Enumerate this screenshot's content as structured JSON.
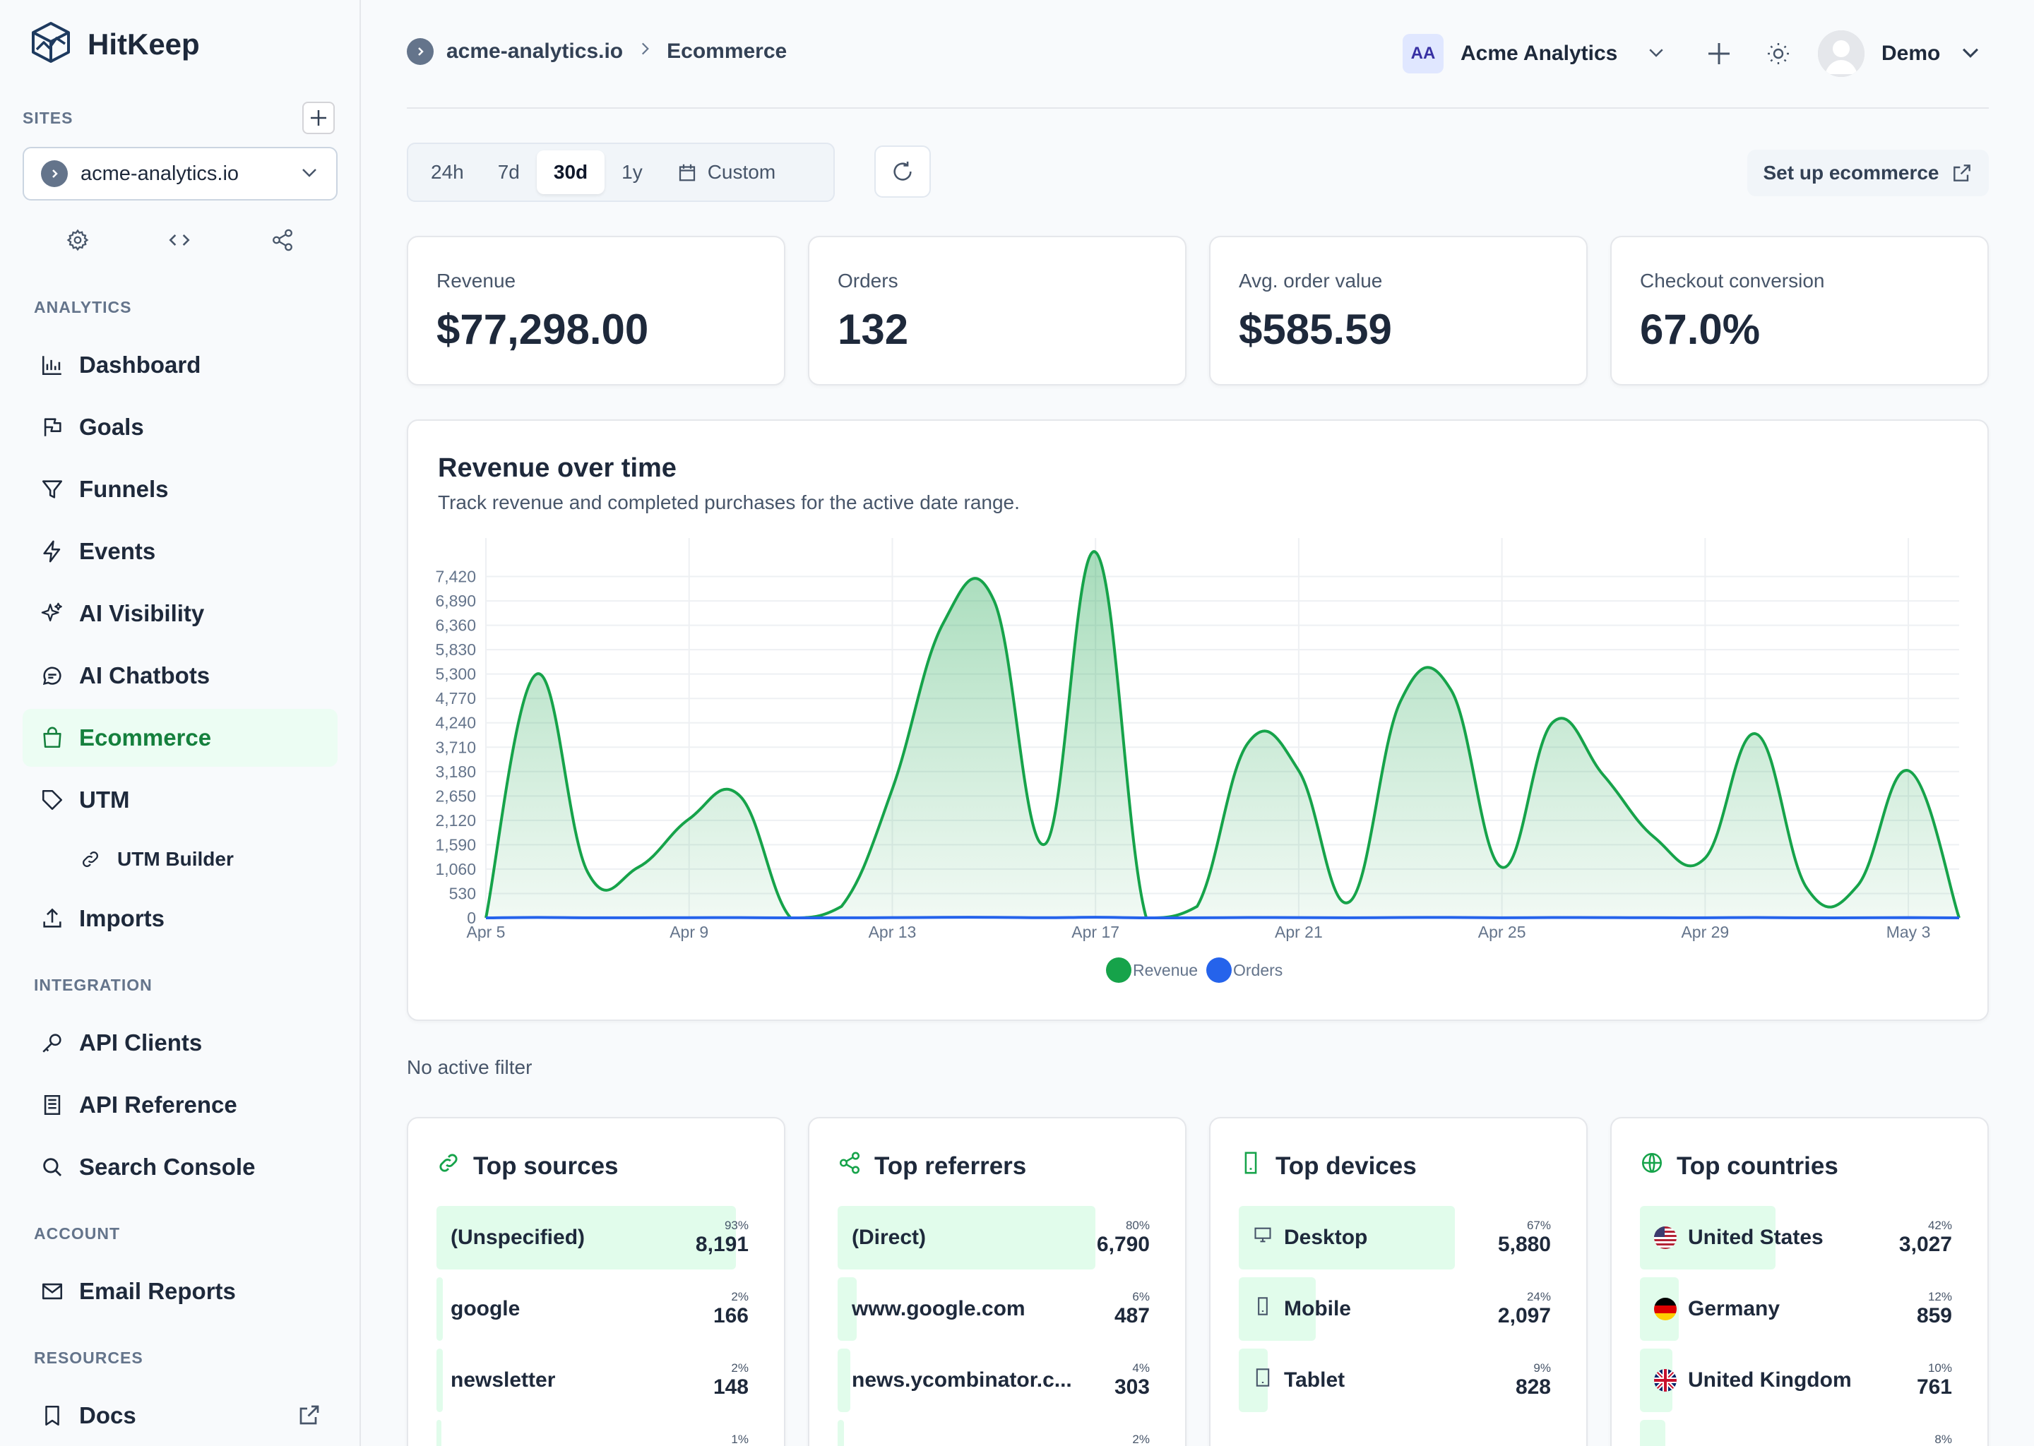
{
  "app": {
    "name": "HitKeep"
  },
  "sidebar": {
    "sites_label": "SITES",
    "site_selected": "acme-analytics.io",
    "sections": {
      "analytics": "ANALYTICS",
      "integration": "INTEGRATION",
      "account": "ACCOUNT",
      "resources": "RESOURCES"
    },
    "items": {
      "dashboard": "Dashboard",
      "goals": "Goals",
      "funnels": "Funnels",
      "events": "Events",
      "ai_visibility": "AI Visibility",
      "ai_chatbots": "AI Chatbots",
      "ecommerce": "Ecommerce",
      "utm": "UTM",
      "utm_builder": "UTM Builder",
      "imports": "Imports",
      "api_clients": "API Clients",
      "api_reference": "API Reference",
      "search_console": "Search Console",
      "email_reports": "Email Reports",
      "docs": "Docs"
    },
    "active": "ecommerce"
  },
  "header": {
    "breadcrumb_site": "acme-analytics.io",
    "breadcrumb_page": "Ecommerce",
    "org_initials": "AA",
    "org_name": "Acme Analytics",
    "user_name": "Demo"
  },
  "toolbar": {
    "ranges": [
      "24h",
      "7d",
      "30d",
      "1y"
    ],
    "active_range": "30d",
    "custom_label": "Custom",
    "setup_label": "Set up ecommerce"
  },
  "kpis": [
    {
      "label": "Revenue",
      "value": "$77,298.00"
    },
    {
      "label": "Orders",
      "value": "132"
    },
    {
      "label": "Avg. order value",
      "value": "$585.59"
    },
    {
      "label": "Checkout conversion",
      "value": "67.0%"
    }
  ],
  "chart": {
    "title": "Revenue over time",
    "subtitle": "Track revenue and completed purchases for the active date range."
  },
  "chart_data": {
    "type": "area",
    "x": [
      "Apr 5",
      "Apr 6",
      "Apr 7",
      "Apr 8",
      "Apr 9",
      "Apr 10",
      "Apr 11",
      "Apr 12",
      "Apr 13",
      "Apr 14",
      "Apr 15",
      "Apr 16",
      "Apr 17",
      "Apr 18",
      "Apr 19",
      "Apr 20",
      "Apr 21",
      "Apr 22",
      "Apr 23",
      "Apr 24",
      "Apr 25",
      "Apr 26",
      "Apr 27",
      "Apr 28",
      "Apr 29",
      "Apr 30",
      "May 1",
      "May 2",
      "May 3",
      "May 4"
    ],
    "x_tick_labels": [
      "Apr 5",
      "Apr 9",
      "Apr 13",
      "Apr 17",
      "Apr 21",
      "Apr 25",
      "Apr 29",
      "May 3"
    ],
    "y_ticks": [
      0,
      530,
      1060,
      1590,
      2120,
      2650,
      3180,
      3710,
      4240,
      4770,
      5300,
      5830,
      6360,
      6890,
      7420
    ],
    "y_tick_labels": [
      "0",
      "530",
      "1,060",
      "1,590",
      "2,120",
      "2,650",
      "3,180",
      "3,710",
      "4,240",
      "4,770",
      "5,300",
      "5,830",
      "6,360",
      "6,890",
      "7,420"
    ],
    "ylim": [
      0,
      7950
    ],
    "series": [
      {
        "name": "Revenue",
        "color": "#16a34a",
        "values": [
          0,
          5300,
          1000,
          1100,
          2150,
          2650,
          0,
          250,
          2800,
          6400,
          6900,
          1600,
          7950,
          0,
          250,
          3800,
          3200,
          350,
          4700,
          4950,
          1100,
          4250,
          3100,
          1750,
          1300,
          4000,
          650,
          700,
          3200,
          0
        ]
      },
      {
        "name": "Orders",
        "color": "#2563eb",
        "values": [
          0,
          10,
          2,
          2,
          4,
          5,
          0,
          1,
          5,
          11,
          12,
          3,
          13,
          0,
          1,
          7,
          6,
          1,
          8,
          9,
          2,
          7,
          6,
          3,
          2,
          7,
          1,
          1,
          6,
          0
        ]
      }
    ],
    "legend": "bottom-center",
    "grid": true
  },
  "filter_text": "No active filter",
  "lists": [
    {
      "title": "Top sources",
      "icon": "link-icon",
      "rows": [
        {
          "name": "(Unspecified)",
          "pct": "93%",
          "value": "8,191",
          "fraction": 0.93
        },
        {
          "name": "google",
          "pct": "2%",
          "value": "166",
          "fraction": 0.02
        },
        {
          "name": "newsletter",
          "pct": "2%",
          "value": "148",
          "fraction": 0.02
        },
        {
          "name": "",
          "pct": "1%",
          "value": "",
          "fraction": 0.01
        }
      ]
    },
    {
      "title": "Top referrers",
      "icon": "share-icon",
      "rows": [
        {
          "name": "(Direct)",
          "pct": "80%",
          "value": "6,790",
          "fraction": 0.8
        },
        {
          "name": "www.google.com",
          "pct": "6%",
          "value": "487",
          "fraction": 0.06
        },
        {
          "name": "news.ycombinator.c...",
          "pct": "4%",
          "value": "303",
          "fraction": 0.04
        },
        {
          "name": "",
          "pct": "2%",
          "value": "",
          "fraction": 0.02
        }
      ]
    },
    {
      "title": "Top devices",
      "icon": "phone-icon",
      "rows": [
        {
          "name": "Desktop",
          "icon": "desktop-icon",
          "pct": "67%",
          "value": "5,880",
          "fraction": 0.67
        },
        {
          "name": "Mobile",
          "icon": "mobile-icon",
          "pct": "24%",
          "value": "2,097",
          "fraction": 0.24
        },
        {
          "name": "Tablet",
          "icon": "tablet-icon",
          "pct": "9%",
          "value": "828",
          "fraction": 0.09
        }
      ]
    },
    {
      "title": "Top countries",
      "icon": "globe-icon",
      "rows": [
        {
          "name": "United States",
          "flag": "us",
          "pct": "42%",
          "value": "3,027",
          "fraction": 0.42
        },
        {
          "name": "Germany",
          "flag": "de",
          "pct": "12%",
          "value": "859",
          "fraction": 0.12
        },
        {
          "name": "United Kingdom",
          "flag": "gb",
          "pct": "10%",
          "value": "761",
          "fraction": 0.1
        },
        {
          "name": "",
          "flag": "",
          "pct": "8%",
          "value": "",
          "fraction": 0.08
        }
      ]
    }
  ]
}
